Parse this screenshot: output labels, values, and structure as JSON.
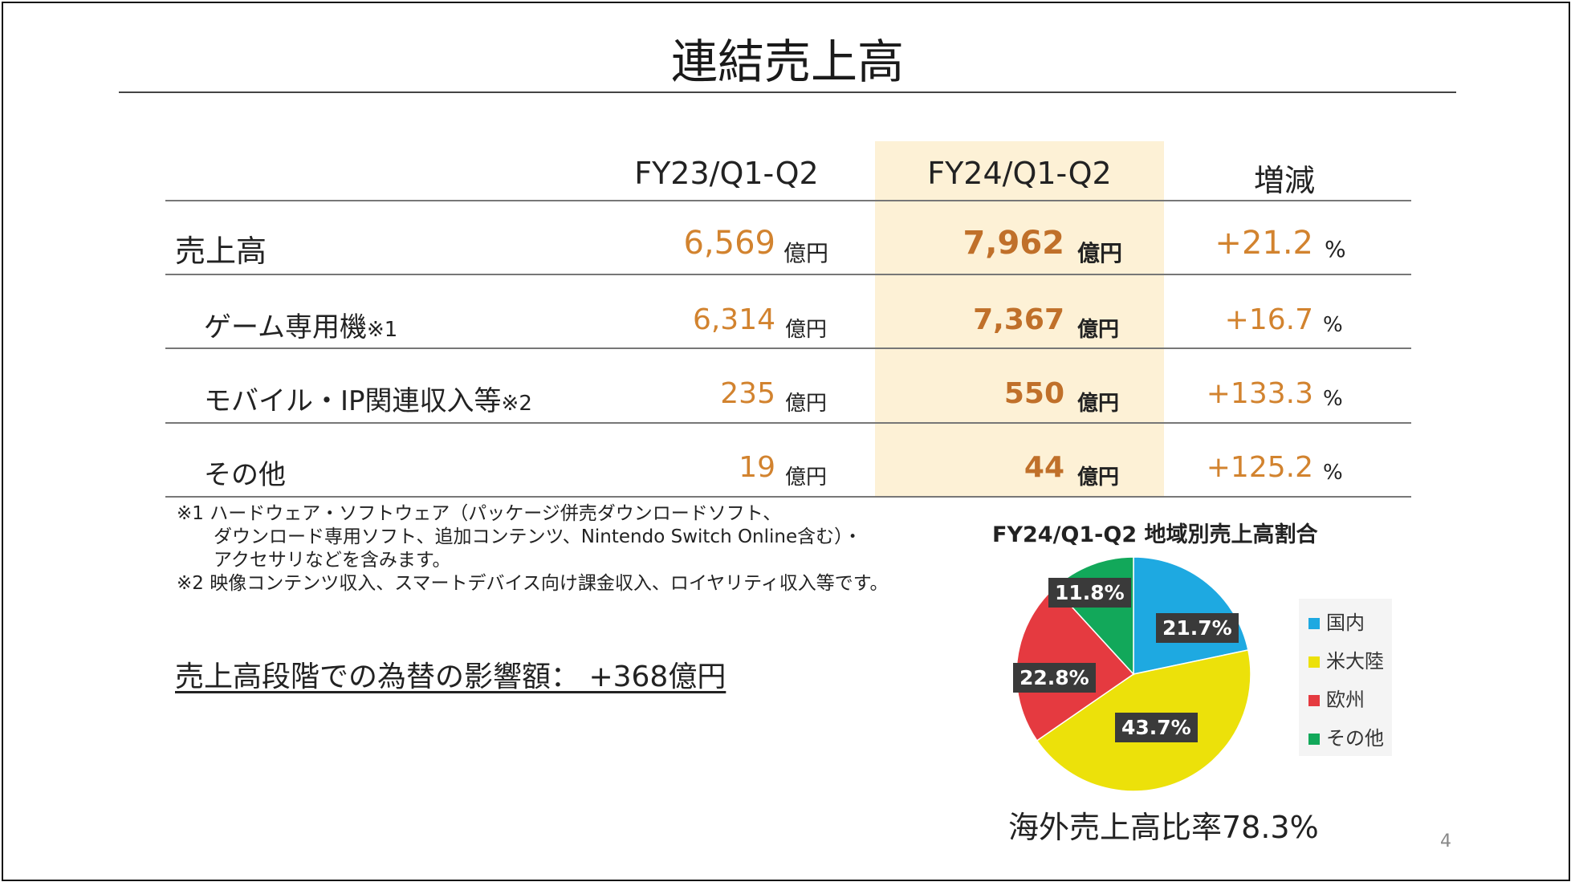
{
  "title": "連結売上高",
  "columns": {
    "prev": "FY23/Q1-Q2",
    "curr": "FY24/Q1-Q2",
    "change": "増減"
  },
  "rows": [
    {
      "label": "売上高",
      "note": "",
      "prev": "6,569",
      "curr": "7,962",
      "change": "+21.2",
      "unit": "億円",
      "pct": "%"
    },
    {
      "label": "ゲーム専用機",
      "note": "※1",
      "prev": "6,314",
      "curr": "7,367",
      "change": "+16.7",
      "unit": "億円",
      "pct": "%"
    },
    {
      "label": "モバイル・IP関連収入等",
      "note": "※2",
      "prev": "235",
      "curr": "550",
      "change": "+133.3",
      "unit": "億円",
      "pct": "%"
    },
    {
      "label": "その他",
      "note": "",
      "prev": "19",
      "curr": "44",
      "change": "+125.2",
      "unit": "億円",
      "pct": "%"
    }
  ],
  "notes": [
    "※1 ハードウェア・ソフトウェア（パッケージ併売ダウンロードソフト、",
    "　　ダウンロード専用ソフト、追加コンテンツ、Nintendo Switch Online含む）・",
    "　　アクセサリなどを含みます。",
    "※2 映像コンテンツ収入、スマートデバイス向け課金収入、ロイヤリティ収入等です。"
  ],
  "fx_impact": "売上高段階での為替の影響額：  +368億円",
  "chart_data": {
    "type": "pie",
    "title": "FY24/Q1-Q2 地域別売上高割合",
    "slices": [
      {
        "name": "国内",
        "value": 21.7,
        "label": "21.7%",
        "color": "#1ea9e1"
      },
      {
        "name": "米大陸",
        "value": 43.7,
        "label": "43.7%",
        "color": "#ece10a"
      },
      {
        "name": "欧州",
        "value": 22.8,
        "label": "22.8%",
        "color": "#e53a40"
      },
      {
        "name": "その他",
        "value": 11.8,
        "label": "11.8%",
        "color": "#12a85a"
      }
    ]
  },
  "overseas_ratio": "海外売上高比率78.3%",
  "page_number": "4"
}
